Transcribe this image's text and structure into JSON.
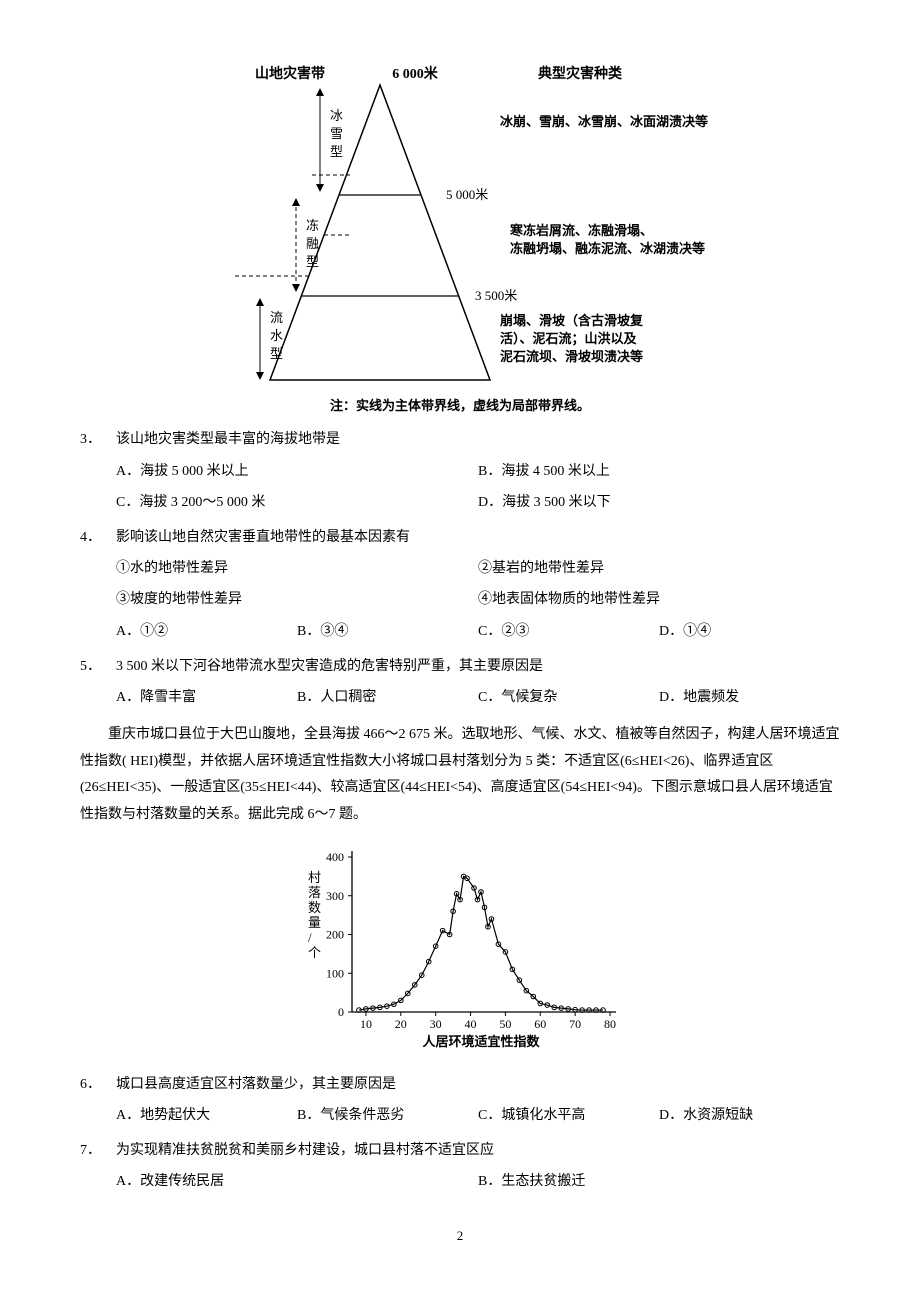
{
  "diagram1": {
    "left_header": "山地灾害带",
    "peak_label": "6 000米",
    "right_header": "典型灾害种类",
    "mid1_label": "5 000米",
    "mid2_label": "3 500米",
    "band1": "冰雪型",
    "band2": "冻融型",
    "band3": "流水型",
    "desc1": "冰崩、雪崩、冰雪崩、冰面湖溃决等",
    "desc2": "寒冻岩屑流、冻融滑塌、冻融坍塌、融冻泥流、冰湖溃决等",
    "desc3": "崩塌、滑坡（含古滑坡复活）、泥石流；山洪以及泥石流坝、滑坡坝溃决等",
    "note": "注：实线为主体带界线，虚线为局部带界线。"
  },
  "q3": {
    "num": "3．",
    "stem": "该山地灾害类型最丰富的海拔地带是",
    "A": "A．海拔 5 000 米以上",
    "B": "B．海拔 4 500 米以上",
    "C": "C．海拔 3 200～5 000 米",
    "D": "D．海拔 3 500 米以下"
  },
  "q4": {
    "num": "4．",
    "stem": "影响该山地自然灾害垂直地带性的最基本因素有",
    "s1": "①水的地带性差异",
    "s2": "②基岩的地带性差异",
    "s3": "③坡度的地带性差异",
    "s4": "④地表固体物质的地带性差异",
    "A": "A．①②",
    "B": "B．③④",
    "C": "C．②③",
    "D": "D．①④"
  },
  "q5": {
    "num": "5．",
    "stem": "3 500 米以下河谷地带流水型灾害造成的危害特别严重，其主要原因是",
    "A": "A．降雪丰富",
    "B": "B．人口稠密",
    "C": "C．气候复杂",
    "D": "D．地震频发"
  },
  "passage2": "重庆市城口县位于大巴山腹地，全县海拔 466～2 675 米。选取地形、气候、水文、植被等自然因子，构建人居环境适宜性指数( HEI)模型，并依据人居环境适宜性指数大小将城口县村落划分为 5 类：不适宜区(6≤HEI<26)、临界适宜区(26≤HEI<35)、一般适宜区(35≤HEI<44)、较高适宜区(44≤HEI<54)、高度适宜区(54≤HEI<94)。下图示意城口县人居环境适宜性指数与村落数量的关系。据此完成 6～7 题。",
  "chart2": {
    "y_max": 400,
    "y_ticks": [
      0,
      100,
      200,
      300,
      400
    ],
    "x_ticks": [
      10,
      20,
      30,
      40,
      50,
      60,
      70,
      80
    ],
    "x_label": "人居环境适宜性指数",
    "y_label": "村落数量/个",
    "points": [
      [
        8,
        5
      ],
      [
        10,
        8
      ],
      [
        12,
        10
      ],
      [
        14,
        12
      ],
      [
        16,
        15
      ],
      [
        18,
        20
      ],
      [
        20,
        30
      ],
      [
        22,
        48
      ],
      [
        24,
        70
      ],
      [
        26,
        95
      ],
      [
        28,
        130
      ],
      [
        30,
        170
      ],
      [
        32,
        210
      ],
      [
        34,
        200
      ],
      [
        35,
        260
      ],
      [
        36,
        305
      ],
      [
        37,
        290
      ],
      [
        38,
        350
      ],
      [
        39,
        345
      ],
      [
        41,
        320
      ],
      [
        42,
        290
      ],
      [
        43,
        310
      ],
      [
        44,
        270
      ],
      [
        45,
        220
      ],
      [
        46,
        240
      ],
      [
        48,
        175
      ],
      [
        50,
        155
      ],
      [
        52,
        110
      ],
      [
        54,
        82
      ],
      [
        56,
        55
      ],
      [
        58,
        40
      ],
      [
        60,
        22
      ],
      [
        62,
        18
      ],
      [
        64,
        12
      ],
      [
        66,
        10
      ],
      [
        68,
        8
      ],
      [
        70,
        6
      ],
      [
        72,
        5
      ],
      [
        74,
        5
      ],
      [
        76,
        5
      ],
      [
        78,
        5
      ]
    ]
  },
  "q6": {
    "num": "6．",
    "stem": "城口县高度适宜区村落数量少，其主要原因是",
    "A": "A．地势起伏大",
    "B": "B．气候条件恶劣",
    "C": "C．城镇化水平高",
    "D": "D．水资源短缺"
  },
  "q7": {
    "num": "7．",
    "stem": "为实现精准扶贫脱贫和美丽乡村建设，城口县村落不适宜区应",
    "A": "A．改建传统民居",
    "B": "B．生态扶贫搬迁"
  },
  "page_num": "2"
}
